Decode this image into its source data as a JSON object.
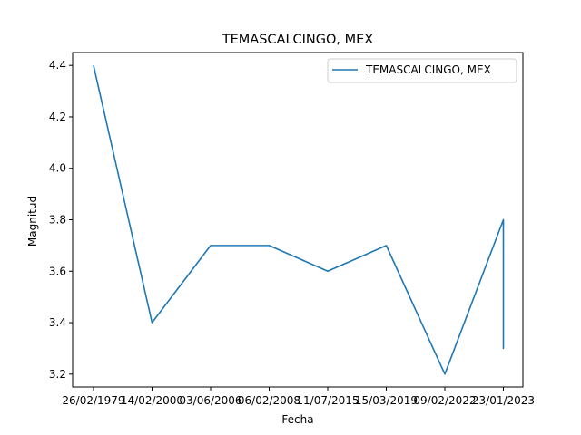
{
  "chart_data": {
    "type": "line",
    "title": "TEMASCALCINGO, MEX",
    "xlabel": "Fecha",
    "ylabel": "Magnitud",
    "x_tick_labels": [
      "26/02/1979",
      "14/02/2000",
      "03/06/2006",
      "06/02/2008",
      "11/07/2015",
      "15/03/2019",
      "09/02/2022",
      "23/01/2023"
    ],
    "ylim": [
      3.15,
      4.45
    ],
    "y_ticks": [
      3.2,
      3.4,
      3.6,
      3.8,
      4.0,
      4.2,
      4.4
    ],
    "y_tick_labels": [
      "3.2",
      "3.4",
      "3.6",
      "3.8",
      "4.0",
      "4.2",
      "4.4"
    ],
    "grid": false,
    "legend_position": "top-right",
    "series": [
      {
        "name": "TEMASCALCINGO, MEX",
        "color": "#1f77b4",
        "x": [
          "26/02/1979",
          "14/02/2000",
          "03/06/2006",
          "06/02/2008",
          "11/07/2015",
          "15/03/2019",
          "09/02/2022",
          "23/01/2023",
          "23/01/2023",
          "23/01/2023",
          "23/01/2023",
          "23/01/2023"
        ],
        "values": [
          4.4,
          3.4,
          3.7,
          3.7,
          3.6,
          3.7,
          3.2,
          3.8,
          3.3,
          3.6,
          3.3,
          3.5
        ]
      }
    ]
  }
}
